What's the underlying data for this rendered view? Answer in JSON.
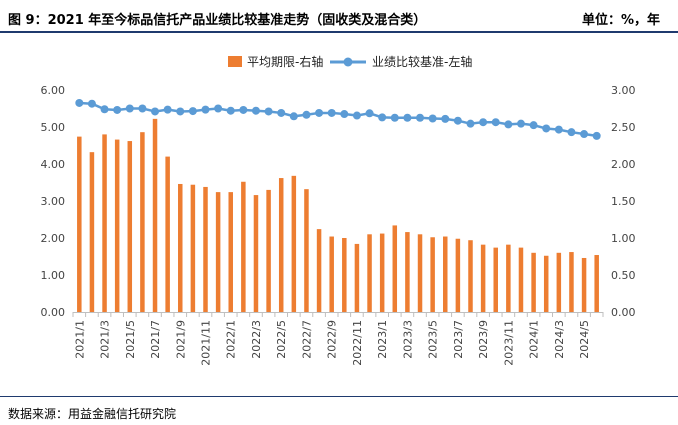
{
  "header": {
    "title": "图 9：2021 年至今标品信托产品业绩比较基准走势（固收类及混合类）",
    "unit": "单位：%，年"
  },
  "footer": {
    "source": "数据来源：用益金融信托研究院"
  },
  "colors": {
    "bar": "#ED7D31",
    "line": "#5B9BD5",
    "rule": "#1f3a6e"
  },
  "chart_data": {
    "type": "bar",
    "categories": [
      "2021/1",
      "2021/2",
      "2021/3",
      "2021/4",
      "2021/5",
      "2021/6",
      "2021/7",
      "2021/8",
      "2021/9",
      "2021/10",
      "2021/11",
      "2021/12",
      "2022/1",
      "2022/2",
      "2022/3",
      "2022/4",
      "2022/5",
      "2022/6",
      "2022/7",
      "2022/8",
      "2022/9",
      "2022/10",
      "2022/11",
      "2022/12",
      "2023/1",
      "2023/2",
      "2023/3",
      "2023/4",
      "2023/5",
      "2023/6",
      "2023/7",
      "2023/8",
      "2023/9",
      "2023/10",
      "2023/11",
      "2023/12",
      "2024/1",
      "2024/2",
      "2024/3",
      "2024/4",
      "2024/5",
      "2024/6"
    ],
    "x_tick_labels": [
      "2021/1",
      "2021/3",
      "2021/5",
      "2021/7",
      "2021/9",
      "2021/11",
      "2022/1",
      "2022/3",
      "2022/5",
      "2022/7",
      "2022/9",
      "2022/11",
      "2023/1",
      "2023/3",
      "2023/5",
      "2023/7",
      "2023/9",
      "2023/11",
      "2024/1",
      "2024/3",
      "2024/5"
    ],
    "series": [
      {
        "name": "平均期限-右轴",
        "type": "bar",
        "axis": "right",
        "values": [
          2.37,
          2.16,
          2.4,
          2.33,
          2.31,
          2.43,
          2.61,
          2.1,
          1.73,
          1.72,
          1.69,
          1.62,
          1.62,
          1.76,
          1.58,
          1.65,
          1.81,
          1.84,
          1.66,
          1.12,
          1.02,
          1.0,
          0.92,
          1.05,
          1.06,
          1.17,
          1.08,
          1.05,
          1.01,
          1.02,
          0.99,
          0.97,
          0.91,
          0.87,
          0.91,
          0.87,
          0.8,
          0.76,
          0.8,
          0.81,
          0.73,
          0.77
        ]
      },
      {
        "name": "业绩比较基准-左轴",
        "type": "line",
        "axis": "left",
        "values": [
          5.65,
          5.63,
          5.48,
          5.46,
          5.5,
          5.5,
          5.42,
          5.47,
          5.42,
          5.43,
          5.47,
          5.5,
          5.44,
          5.46,
          5.44,
          5.42,
          5.38,
          5.29,
          5.33,
          5.38,
          5.38,
          5.35,
          5.31,
          5.37,
          5.26,
          5.25,
          5.25,
          5.25,
          5.23,
          5.22,
          5.17,
          5.09,
          5.13,
          5.13,
          5.07,
          5.09,
          5.05,
          4.96,
          4.93,
          4.86,
          4.81,
          4.76
        ]
      }
    ],
    "left_axis": {
      "min": 0,
      "max": 6,
      "ticks": [
        "0.00",
        "1.00",
        "2.00",
        "3.00",
        "4.00",
        "5.00",
        "6.00"
      ]
    },
    "right_axis": {
      "min": 0,
      "max": 3,
      "ticks": [
        "0.00",
        "0.50",
        "1.00",
        "1.50",
        "2.00",
        "2.50",
        "3.00"
      ]
    },
    "grid": false,
    "legend_position": "top"
  }
}
